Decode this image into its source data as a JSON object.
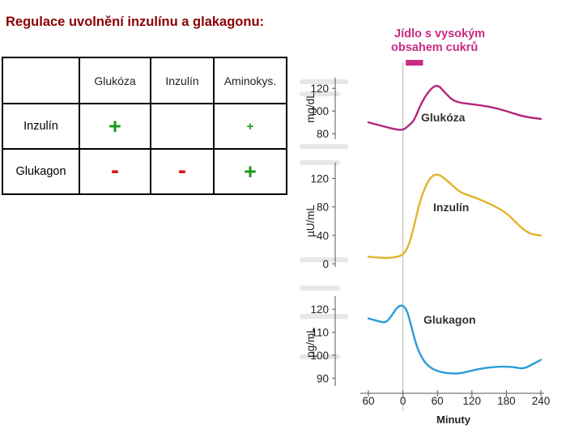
{
  "slide": {
    "title": "Regulace uvolnění inzulínu a glakagonu:"
  },
  "table": {
    "headers": [
      "",
      "Glukóza",
      "Inzulín",
      "Aminokys."
    ],
    "rows": [
      {
        "label": "Inzulín",
        "cells": [
          "+",
          "",
          "+"
        ]
      },
      {
        "label": "Glukagon",
        "cells": [
          "-",
          "-",
          "+"
        ]
      }
    ]
  },
  "colors": {
    "title": "#8b0000",
    "plus": "#1a9a1a",
    "minus": "#e01010",
    "glucose_curve": "#b5257a",
    "insulin_curve": "#e2b32c",
    "glucagon_curve": "#2a9bd8",
    "meal_bar": "#c82a84",
    "meal_label": "#c82a84"
  },
  "chart_data": {
    "type": "line",
    "annotation": "Jídlo s vysokým obsahem cukrů",
    "meal_interval": [
      5,
      35
    ],
    "xlabel": "Minuty",
    "x_ticks": [
      "60",
      "0",
      "60",
      "120",
      "180",
      "240"
    ],
    "x_values": [
      -60,
      0,
      60,
      120,
      180,
      240
    ],
    "xlim": [
      -60,
      240
    ],
    "panels": [
      {
        "name": "Glukóza",
        "ylabel": "mg/dL",
        "yticks": [
          80,
          100,
          120
        ],
        "ylim": [
          78,
          128
        ],
        "x": [
          -60,
          -45,
          -30,
          -15,
          0,
          10,
          20,
          30,
          45,
          60,
          75,
          90,
          120,
          150,
          180,
          210,
          240
        ],
        "values": [
          90,
          88,
          86,
          84,
          83,
          87,
          92,
          105,
          118,
          124,
          115,
          108,
          106,
          104,
          100,
          95,
          93
        ]
      },
      {
        "name": "Inzulín",
        "ylabel": "µU/mL",
        "yticks": [
          0,
          40,
          80,
          120
        ],
        "ylim": [
          0,
          140
        ],
        "x": [
          -60,
          -45,
          -30,
          -15,
          0,
          10,
          20,
          30,
          45,
          60,
          80,
          100,
          120,
          150,
          180,
          200,
          220,
          240
        ],
        "values": [
          10,
          9,
          8,
          9,
          12,
          25,
          55,
          90,
          120,
          128,
          115,
          100,
          95,
          85,
          72,
          55,
          42,
          40
        ]
      },
      {
        "name": "Glukagon",
        "ylabel": "pg/mL",
        "yticks": [
          90,
          100,
          110,
          120
        ],
        "ylim": [
          88,
          125
        ],
        "x": [
          -60,
          -45,
          -30,
          -20,
          -10,
          0,
          8,
          15,
          25,
          35,
          45,
          60,
          80,
          100,
          130,
          160,
          190,
          210,
          225,
          240
        ],
        "values": [
          116,
          115,
          114,
          117,
          121,
          122,
          119,
          112,
          103,
          98,
          95,
          93,
          92,
          92,
          94,
          95,
          95,
          94,
          96,
          98
        ]
      }
    ]
  }
}
